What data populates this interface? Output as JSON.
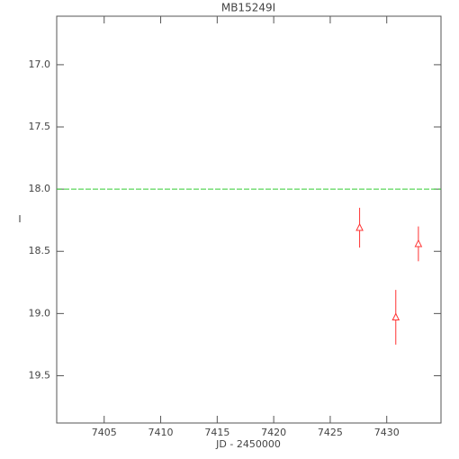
{
  "chart_data": {
    "type": "scatter",
    "title": "MB15249I",
    "x_label": "JD - 2450000",
    "y_label": "I",
    "xlim": [
      7400.8,
      7434.8
    ],
    "xticks": [
      7405,
      7410,
      7415,
      7420,
      7425,
      7430
    ],
    "ylim": [
      16.61,
      19.88
    ],
    "y_inverted": true,
    "yticks": [
      {
        "value": 17,
        "label": "17.0"
      },
      {
        "value": 17.5,
        "label": "17.5"
      },
      {
        "value": 18,
        "label": "18.0"
      },
      {
        "value": 18.5,
        "label": "18.5"
      },
      {
        "value": 19,
        "label": "19.0"
      },
      {
        "value": 19.5,
        "label": "19.5"
      }
    ],
    "reference_line": {
      "value": 18.0,
      "color": "#33cc33"
    },
    "series": [
      {
        "color": "#ff3333",
        "x": [
          7427.6,
          7430.8,
          7432.8
        ],
        "values": [
          18.31,
          19.03,
          18.44
        ],
        "errors": [
          0.16,
          0.22,
          0.14
        ]
      }
    ]
  }
}
